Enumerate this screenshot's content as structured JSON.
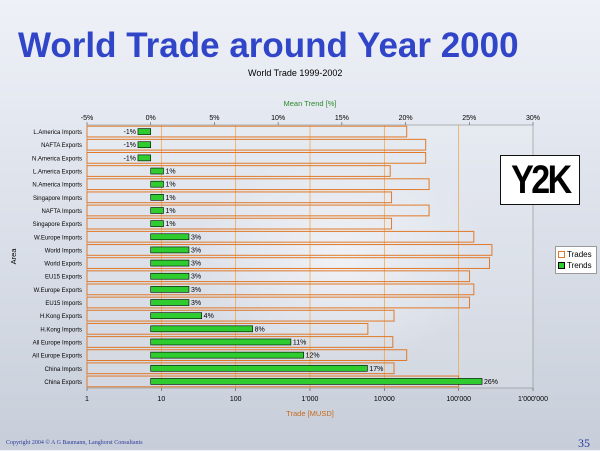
{
  "slide": {
    "title": "World Trade around Year 2000",
    "copyright": "Copyright 2004 © A G Baumann, Langhorst Consultants",
    "page_number": "35",
    "logo_text": "Y2K"
  },
  "chart_data": {
    "type": "bar",
    "title": "World Trade 1999-2002",
    "ylabel": "Area",
    "x_trade_label": "Trade [MUSD]",
    "x_trend_label": "Mean Trend [%]",
    "x_trade_scale": "log",
    "x_trade_ticks": [
      "1",
      "10",
      "100",
      "1'000",
      "10'000",
      "100'000",
      "1'000'000"
    ],
    "x_trend_ticks": [
      "-5%",
      "0%",
      "5%",
      "10%",
      "15%",
      "20%",
      "25%",
      "30%"
    ],
    "x_trend_range": [
      -5,
      30
    ],
    "grid": true,
    "legend_position": "right",
    "colors": {
      "trades": "#e07a2a",
      "trends": "#2ecc2e"
    },
    "categories": [
      "L.America Imports",
      "NAFTA Exports",
      "N.America Exports",
      "L.America Exports",
      "N.America Imports",
      "Singapore Imports",
      "NAFTA Imports",
      "Singapore Exports",
      "W.Europe Imports",
      "World Imports",
      "World Exports",
      "EU15 Exports",
      "W.Europe Exports",
      "EU15 Imports",
      "H.Kong Exports",
      "H.Kong Imports",
      "All Europe Imports",
      "All Europe Exports",
      "China Imports",
      "China Exports"
    ],
    "series": [
      {
        "name": "Trades",
        "values": [
          20000,
          36000,
          36000,
          12000,
          40000,
          12500,
          40000,
          12500,
          160000,
          280000,
          260000,
          140000,
          160000,
          140000,
          13500,
          6000,
          13000,
          20000,
          13500,
          100000
        ]
      },
      {
        "name": "Trends",
        "values": [
          -1,
          -1,
          -1,
          1,
          1,
          1,
          1,
          1,
          3,
          3,
          3,
          3,
          3,
          3,
          4,
          8,
          11,
          12,
          17,
          26
        ],
        "labels": [
          "-1%",
          "-1%",
          "-1%",
          "1%",
          "1%",
          "1%",
          "1%",
          "1%",
          "3%",
          "3%",
          "3%",
          "3%",
          "3%",
          "3%",
          "4%",
          "8%",
          "11%",
          "12%",
          "17%",
          "26%"
        ]
      }
    ]
  }
}
